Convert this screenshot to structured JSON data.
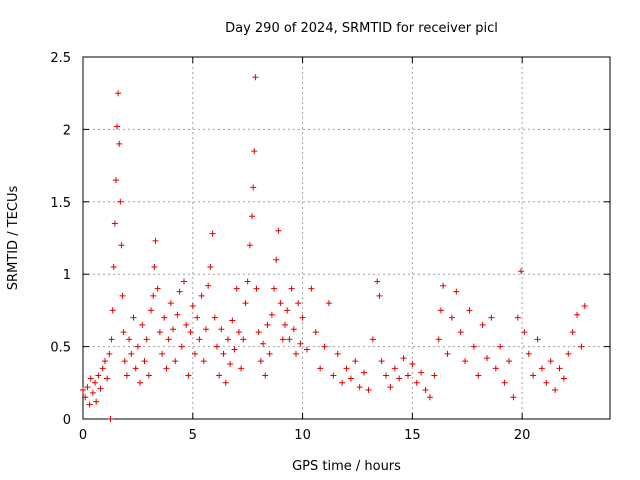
{
  "chart_data": {
    "type": "scatter",
    "title": "Day 290 of 2024, SRMTID for receiver picl",
    "xlabel": "GPS time / hours",
    "ylabel": "SRMTID / TECUs",
    "xlim": [
      0,
      24
    ],
    "ylim": [
      0,
      2.5
    ],
    "xticks": [
      "0",
      "5",
      "10",
      "15",
      "20"
    ],
    "yticks": [
      "0",
      "0.5",
      "1",
      "1.5",
      "2",
      "2.5"
    ],
    "grid": true,
    "marker": "+",
    "color": "#e00000",
    "series": [
      {
        "name": "SRMTID",
        "points": [
          [
            0.0,
            0.2
          ],
          [
            0.1,
            0.15
          ],
          [
            0.2,
            0.22
          ],
          [
            0.3,
            0.1
          ],
          [
            0.35,
            0.28
          ],
          [
            0.45,
            0.18
          ],
          [
            0.55,
            0.25
          ],
          [
            0.6,
            0.12
          ],
          [
            0.7,
            0.3
          ],
          [
            0.8,
            0.21
          ],
          [
            0.9,
            0.35
          ],
          [
            1.0,
            0.4
          ],
          [
            1.1,
            0.28
          ],
          [
            1.2,
            0.45
          ],
          [
            1.25,
            0.0
          ],
          [
            1.3,
            0.55
          ],
          [
            1.35,
            0.75
          ],
          [
            1.4,
            1.05
          ],
          [
            1.45,
            1.35
          ],
          [
            1.5,
            1.65
          ],
          [
            1.55,
            2.02
          ],
          [
            1.6,
            2.25
          ],
          [
            1.65,
            1.9
          ],
          [
            1.7,
            1.5
          ],
          [
            1.75,
            1.2
          ],
          [
            1.8,
            0.85
          ],
          [
            1.85,
            0.6
          ],
          [
            1.9,
            0.4
          ],
          [
            2.0,
            0.3
          ],
          [
            2.1,
            0.55
          ],
          [
            2.2,
            0.45
          ],
          [
            2.3,
            0.7
          ],
          [
            2.4,
            0.35
          ],
          [
            2.5,
            0.5
          ],
          [
            2.6,
            0.25
          ],
          [
            2.7,
            0.65
          ],
          [
            2.8,
            0.4
          ],
          [
            2.9,
            0.55
          ],
          [
            3.0,
            0.3
          ],
          [
            3.1,
            0.75
          ],
          [
            3.2,
            0.85
          ],
          [
            3.25,
            1.05
          ],
          [
            3.3,
            1.23
          ],
          [
            3.4,
            0.9
          ],
          [
            3.5,
            0.6
          ],
          [
            3.6,
            0.45
          ],
          [
            3.7,
            0.7
          ],
          [
            3.8,
            0.35
          ],
          [
            3.9,
            0.55
          ],
          [
            4.0,
            0.8
          ],
          [
            4.1,
            0.62
          ],
          [
            4.2,
            0.4
          ],
          [
            4.3,
            0.72
          ],
          [
            4.4,
            0.88
          ],
          [
            4.5,
            0.5
          ],
          [
            4.6,
            0.95
          ],
          [
            4.7,
            0.65
          ],
          [
            4.8,
            0.3
          ],
          [
            4.9,
            0.6
          ],
          [
            5.0,
            0.78
          ],
          [
            5.1,
            0.45
          ],
          [
            5.2,
            0.7
          ],
          [
            5.3,
            0.55
          ],
          [
            5.4,
            0.85
          ],
          [
            5.5,
            0.4
          ],
          [
            5.6,
            0.62
          ],
          [
            5.7,
            0.92
          ],
          [
            5.8,
            1.05
          ],
          [
            5.9,
            1.28
          ],
          [
            6.0,
            0.7
          ],
          [
            6.1,
            0.5
          ],
          [
            6.2,
            0.3
          ],
          [
            6.3,
            0.62
          ],
          [
            6.4,
            0.45
          ],
          [
            6.5,
            0.25
          ],
          [
            6.6,
            0.55
          ],
          [
            6.7,
            0.38
          ],
          [
            6.8,
            0.68
          ],
          [
            6.9,
            0.48
          ],
          [
            7.0,
            0.9
          ],
          [
            7.1,
            0.6
          ],
          [
            7.2,
            0.35
          ],
          [
            7.3,
            0.55
          ],
          [
            7.4,
            0.8
          ],
          [
            7.5,
            0.95
          ],
          [
            7.6,
            1.2
          ],
          [
            7.7,
            1.4
          ],
          [
            7.75,
            1.6
          ],
          [
            7.8,
            1.85
          ],
          [
            7.85,
            2.36
          ],
          [
            7.9,
            0.9
          ],
          [
            8.0,
            0.6
          ],
          [
            8.1,
            0.4
          ],
          [
            8.2,
            0.52
          ],
          [
            8.3,
            0.3
          ],
          [
            8.4,
            0.65
          ],
          [
            8.5,
            0.45
          ],
          [
            8.6,
            0.72
          ],
          [
            8.7,
            0.9
          ],
          [
            8.8,
            1.1
          ],
          [
            8.9,
            1.3
          ],
          [
            9.0,
            0.8
          ],
          [
            9.1,
            0.55
          ],
          [
            9.2,
            0.65
          ],
          [
            9.3,
            0.75
          ],
          [
            9.4,
            0.55
          ],
          [
            9.5,
            0.9
          ],
          [
            9.6,
            0.62
          ],
          [
            9.7,
            0.45
          ],
          [
            9.8,
            0.8
          ],
          [
            9.9,
            0.52
          ],
          [
            10.0,
            0.7
          ],
          [
            10.2,
            0.48
          ],
          [
            10.4,
            0.9
          ],
          [
            10.6,
            0.6
          ],
          [
            10.8,
            0.35
          ],
          [
            11.0,
            0.5
          ],
          [
            11.2,
            0.8
          ],
          [
            11.4,
            0.3
          ],
          [
            11.6,
            0.45
          ],
          [
            11.8,
            0.25
          ],
          [
            12.0,
            0.35
          ],
          [
            12.2,
            0.28
          ],
          [
            12.4,
            0.4
          ],
          [
            12.6,
            0.22
          ],
          [
            12.8,
            0.32
          ],
          [
            13.0,
            0.2
          ],
          [
            13.2,
            0.55
          ],
          [
            13.4,
            0.95
          ],
          [
            13.5,
            0.85
          ],
          [
            13.6,
            0.4
          ],
          [
            13.8,
            0.3
          ],
          [
            14.0,
            0.22
          ],
          [
            14.2,
            0.35
          ],
          [
            14.4,
            0.28
          ],
          [
            14.6,
            0.42
          ],
          [
            14.8,
            0.3
          ],
          [
            15.0,
            0.38
          ],
          [
            15.2,
            0.25
          ],
          [
            15.4,
            0.32
          ],
          [
            15.6,
            0.2
          ],
          [
            15.8,
            0.15
          ],
          [
            16.0,
            0.3
          ],
          [
            16.2,
            0.55
          ],
          [
            16.3,
            0.75
          ],
          [
            16.4,
            0.92
          ],
          [
            16.6,
            0.45
          ],
          [
            16.8,
            0.7
          ],
          [
            17.0,
            0.88
          ],
          [
            17.2,
            0.6
          ],
          [
            17.4,
            0.4
          ],
          [
            17.6,
            0.75
          ],
          [
            17.8,
            0.5
          ],
          [
            18.0,
            0.3
          ],
          [
            18.2,
            0.65
          ],
          [
            18.4,
            0.42
          ],
          [
            18.6,
            0.7
          ],
          [
            18.8,
            0.35
          ],
          [
            19.0,
            0.5
          ],
          [
            19.2,
            0.25
          ],
          [
            19.4,
            0.4
          ],
          [
            19.6,
            0.15
          ],
          [
            19.8,
            0.7
          ],
          [
            19.95,
            1.02
          ],
          [
            20.1,
            0.6
          ],
          [
            20.3,
            0.45
          ],
          [
            20.5,
            0.3
          ],
          [
            20.7,
            0.55
          ],
          [
            20.9,
            0.35
          ],
          [
            21.1,
            0.25
          ],
          [
            21.3,
            0.4
          ],
          [
            21.5,
            0.2
          ],
          [
            21.7,
            0.35
          ],
          [
            21.9,
            0.28
          ],
          [
            22.1,
            0.45
          ],
          [
            22.3,
            0.6
          ],
          [
            22.5,
            0.72
          ],
          [
            22.7,
            0.5
          ],
          [
            22.85,
            0.78
          ]
        ]
      }
    ]
  }
}
